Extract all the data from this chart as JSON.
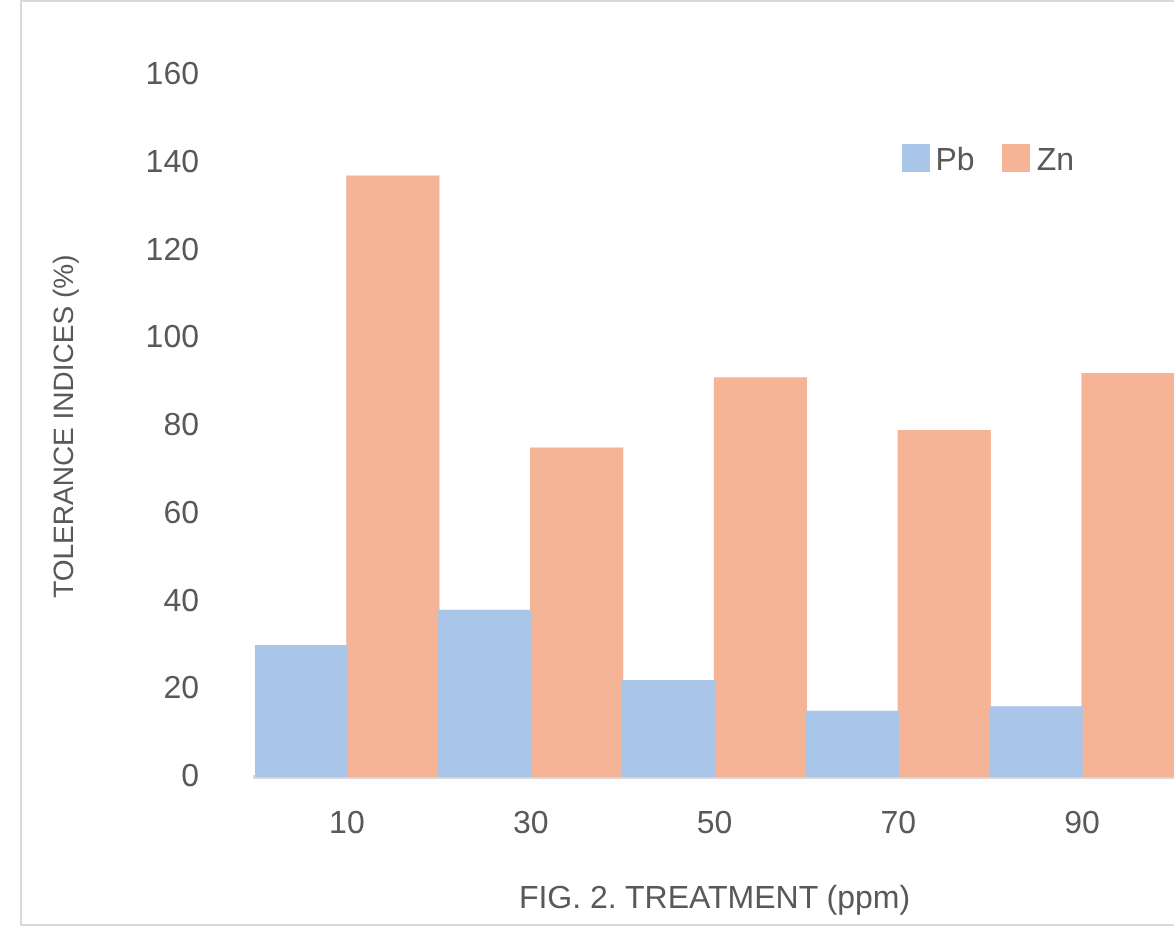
{
  "chart_data": {
    "type": "bar",
    "xlabel": "FIG. 2. TREATMENT (ppm)",
    "ylabel": "TOLERANCE INDICES (%)",
    "categories": [
      "10",
      "30",
      "50",
      "70",
      "90"
    ],
    "series": [
      {
        "name": "Pb",
        "color": "#a9c6e8",
        "values": [
          30,
          38,
          22,
          15,
          16
        ]
      },
      {
        "name": "Zn",
        "color": "#f5b495",
        "values": [
          137,
          75,
          91,
          79,
          92
        ]
      }
    ],
    "ylim": [
      0,
      160
    ],
    "yticks": [
      0,
      20,
      40,
      60,
      80,
      100,
      120,
      140,
      160
    ],
    "grid": false,
    "legend": "top right"
  }
}
